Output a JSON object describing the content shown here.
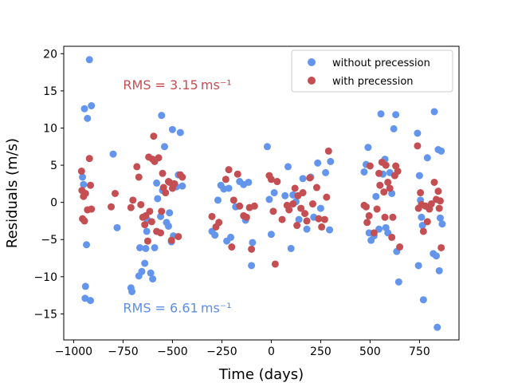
{
  "chart_data": {
    "type": "scatter",
    "title": "",
    "xlabel": "Time (days)",
    "ylabel": "Residuals (m/s)",
    "xlim": [
      -1050,
      950
    ],
    "ylim": [
      -18.5,
      21.0
    ],
    "xticks": [
      -1000,
      -750,
      -500,
      -250,
      0,
      250,
      500,
      750
    ],
    "xtick_labels": [
      "−1000",
      "−750",
      "−500",
      "−250",
      "0",
      "250",
      "500",
      "750"
    ],
    "yticks": [
      -15,
      -10,
      -5,
      0,
      5,
      10,
      15,
      20
    ],
    "ytick_labels": [
      "−15",
      "−10",
      "−5",
      "0",
      "5",
      "10",
      "15",
      "20"
    ],
    "legend": {
      "position": "upper right"
    },
    "annotations": [
      {
        "name": "rms-with",
        "text": "RMS = 3.15 ms⁻¹",
        "color": "#c44e52",
        "x": -750,
        "y": 15.2
      },
      {
        "name": "rms-without",
        "text": "RMS = 6.61 ms⁻¹",
        "color": "#5b8fe6",
        "x": -750,
        "y": -14.8
      }
    ],
    "series": [
      {
        "name": "without precession",
        "color": "#6495ed",
        "points": [
          [
            -955,
            3.4
          ],
          [
            -950,
            2.4
          ],
          [
            -945,
            12.6
          ],
          [
            -942,
            -12.9
          ],
          [
            -940,
            -11.3
          ],
          [
            -935,
            -5.7
          ],
          [
            -930,
            11.3
          ],
          [
            -920,
            19.2
          ],
          [
            -915,
            -13.2
          ],
          [
            -910,
            13.0
          ],
          [
            -800,
            6.5
          ],
          [
            -780,
            -3.4
          ],
          [
            -710,
            -11.5
          ],
          [
            -705,
            -12.0
          ],
          [
            -670,
            -9.9
          ],
          [
            -665,
            -6.1
          ],
          [
            -655,
            -9.3
          ],
          [
            -640,
            -8.2
          ],
          [
            -635,
            -6.2
          ],
          [
            -630,
            -3.9
          ],
          [
            -625,
            -2.4
          ],
          [
            -610,
            -9.5
          ],
          [
            -600,
            -10.3
          ],
          [
            -590,
            -6.1
          ],
          [
            -580,
            2.6
          ],
          [
            -575,
            0.5
          ],
          [
            -560,
            -1.9
          ],
          [
            -555,
            11.7
          ],
          [
            -550,
            1.6
          ],
          [
            -540,
            7.5
          ],
          [
            -530,
            -2.7
          ],
          [
            -520,
            -3.2
          ],
          [
            -515,
            -1.4
          ],
          [
            -505,
            -5.3
          ],
          [
            -500,
            9.8
          ],
          [
            -495,
            -4.5
          ],
          [
            -480,
            2.1
          ],
          [
            -470,
            3.7
          ],
          [
            -460,
            9.4
          ],
          [
            -450,
            2.2
          ],
          [
            -300,
            -3.9
          ],
          [
            -285,
            -4.4
          ],
          [
            -270,
            0.3
          ],
          [
            -255,
            2.3
          ],
          [
            -240,
            1.8
          ],
          [
            -225,
            -5.2
          ],
          [
            -215,
            1.9
          ],
          [
            -205,
            -4.7
          ],
          [
            -180,
            -0.6
          ],
          [
            -160,
            2.8
          ],
          [
            -140,
            2.4
          ],
          [
            -130,
            -2.4
          ],
          [
            -115,
            2.7
          ],
          [
            -100,
            -8.5
          ],
          [
            -95,
            -5.4
          ],
          [
            -20,
            7.5
          ],
          [
            -10,
            0.4
          ],
          [
            0,
            -4.3
          ],
          [
            15,
            1.3
          ],
          [
            70,
            0.9
          ],
          [
            85,
            4.8
          ],
          [
            100,
            -6.2
          ],
          [
            110,
            1.0
          ],
          [
            125,
            0.1
          ],
          [
            140,
            -2.3
          ],
          [
            160,
            3.2
          ],
          [
            180,
            -3.6
          ],
          [
            200,
            3.4
          ],
          [
            215,
            -2.0
          ],
          [
            235,
            5.3
          ],
          [
            250,
            -0.8
          ],
          [
            275,
            4.0
          ],
          [
            295,
            -3.7
          ],
          [
            300,
            5.5
          ],
          [
            470,
            4.1
          ],
          [
            480,
            5.1
          ],
          [
            490,
            7.4
          ],
          [
            495,
            -4.1
          ],
          [
            505,
            -5.1
          ],
          [
            520,
            -4.5
          ],
          [
            530,
            0.8
          ],
          [
            545,
            -3.6
          ],
          [
            555,
            11.9
          ],
          [
            565,
            3.8
          ],
          [
            575,
            5.8
          ],
          [
            580,
            -3.4
          ],
          [
            590,
            -4.1
          ],
          [
            600,
            4.0
          ],
          [
            610,
            1.2
          ],
          [
            620,
            9.9
          ],
          [
            630,
            11.8
          ],
          [
            635,
            -6.6
          ],
          [
            645,
            -10.7
          ],
          [
            740,
            9.3
          ],
          [
            745,
            -8.5
          ],
          [
            750,
            3.6
          ],
          [
            755,
            0.3
          ],
          [
            760,
            -2.0
          ],
          [
            765,
            -3.1
          ],
          [
            770,
            -13.1
          ],
          [
            790,
            6.0
          ],
          [
            820,
            -6.9
          ],
          [
            825,
            12.2
          ],
          [
            835,
            -7.2
          ],
          [
            840,
            -16.8
          ],
          [
            845,
            7.1
          ],
          [
            850,
            -9.2
          ],
          [
            855,
            -2.1
          ],
          [
            860,
            6.9
          ],
          [
            865,
            -2.9
          ]
        ]
      },
      {
        "name": "with precession",
        "color": "#c44e52",
        "points": [
          [
            -960,
            4.2
          ],
          [
            -958,
            1.6
          ],
          [
            -955,
            -2.2
          ],
          [
            -950,
            0.8
          ],
          [
            -945,
            -2.5
          ],
          [
            -940,
            1.2
          ],
          [
            -930,
            -1.0
          ],
          [
            -920,
            5.9
          ],
          [
            -915,
            2.3
          ],
          [
            -910,
            -0.9
          ],
          [
            -810,
            -0.6
          ],
          [
            -790,
            1.2
          ],
          [
            -710,
            -0.7
          ],
          [
            -700,
            0.3
          ],
          [
            -680,
            4.8
          ],
          [
            -670,
            3.4
          ],
          [
            -660,
            -0.3
          ],
          [
            -650,
            -2.0
          ],
          [
            -640,
            -3.0
          ],
          [
            -635,
            -1.8
          ],
          [
            -625,
            -5.2
          ],
          [
            -620,
            6.1
          ],
          [
            -615,
            -1.2
          ],
          [
            -605,
            -2.6
          ],
          [
            -600,
            5.8
          ],
          [
            -595,
            8.9
          ],
          [
            -590,
            5.5
          ],
          [
            -580,
            -3.9
          ],
          [
            -570,
            6.0
          ],
          [
            -560,
            -4.1
          ],
          [
            -555,
            -1.2
          ],
          [
            -550,
            3.9
          ],
          [
            -545,
            2.0
          ],
          [
            -535,
            1.3
          ],
          [
            -520,
            2.8
          ],
          [
            -515,
            2.7
          ],
          [
            -505,
            -5.1
          ],
          [
            -500,
            1.9
          ],
          [
            -490,
            2.5
          ],
          [
            -470,
            -4.6
          ],
          [
            -460,
            3.7
          ],
          [
            -450,
            3.4
          ],
          [
            -300,
            -1.9
          ],
          [
            -280,
            -3.3
          ],
          [
            -265,
            -2.7
          ],
          [
            -230,
            3.1
          ],
          [
            -215,
            4.4
          ],
          [
            -200,
            -6.0
          ],
          [
            -190,
            0.3
          ],
          [
            -170,
            3.8
          ],
          [
            -160,
            -0.5
          ],
          [
            -140,
            -1.8
          ],
          [
            -125,
            -2.0
          ],
          [
            -110,
            -0.7
          ],
          [
            -100,
            -6.3
          ],
          [
            -85,
            -0.5
          ],
          [
            -10,
            3.6
          ],
          [
            0,
            3.1
          ],
          [
            10,
            -1.2
          ],
          [
            20,
            -8.3
          ],
          [
            30,
            2.8
          ],
          [
            55,
            -2.3
          ],
          [
            80,
            -0.4
          ],
          [
            90,
            -1.0
          ],
          [
            110,
            -0.2
          ],
          [
            120,
            1.9
          ],
          [
            130,
            -3.1
          ],
          [
            135,
            0.9
          ],
          [
            150,
            -0.8
          ],
          [
            160,
            1.3
          ],
          [
            170,
            -1.5
          ],
          [
            180,
            -2.5
          ],
          [
            195,
            3.3
          ],
          [
            210,
            -0.2
          ],
          [
            230,
            2.0
          ],
          [
            240,
            -2.2
          ],
          [
            255,
            -3.3
          ],
          [
            270,
            -2.3
          ],
          [
            280,
            0.7
          ],
          [
            290,
            6.9
          ],
          [
            470,
            -0.4
          ],
          [
            480,
            -0.6
          ],
          [
            485,
            -2.7
          ],
          [
            495,
            -1.8
          ],
          [
            500,
            4.9
          ],
          [
            520,
            -4.1
          ],
          [
            535,
            -0.9
          ],
          [
            545,
            3.9
          ],
          [
            550,
            2.3
          ],
          [
            560,
            5.4
          ],
          [
            570,
            1.4
          ],
          [
            575,
            -2.0
          ],
          [
            580,
            5.0
          ],
          [
            590,
            2.7
          ],
          [
            600,
            1.9
          ],
          [
            610,
            -4.7
          ],
          [
            615,
            -2.0
          ],
          [
            625,
            3.6
          ],
          [
            630,
            4.9
          ],
          [
            640,
            4.2
          ],
          [
            650,
            -6.0
          ],
          [
            740,
            7.6
          ],
          [
            745,
            -0.8
          ],
          [
            755,
            1.3
          ],
          [
            760,
            -0.3
          ],
          [
            770,
            -3.9
          ],
          [
            780,
            -0.5
          ],
          [
            790,
            -2.6
          ],
          [
            800,
            -0.9
          ],
          [
            810,
            -0.2
          ],
          [
            825,
            2.7
          ],
          [
            835,
            0.4
          ],
          [
            845,
            1.5
          ],
          [
            850,
            -0.8
          ],
          [
            855,
            0.2
          ],
          [
            860,
            -6.1
          ]
        ]
      }
    ]
  }
}
